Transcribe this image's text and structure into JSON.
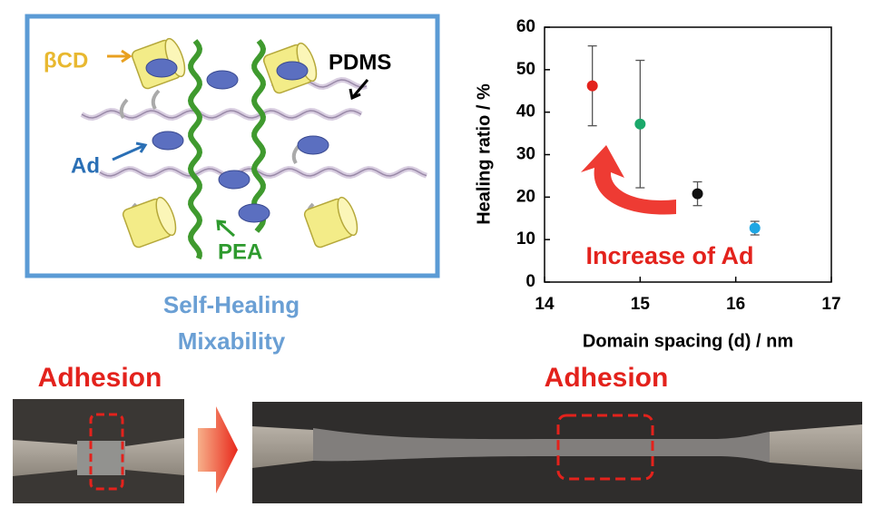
{
  "diagram": {
    "labels": [
      "βCD",
      "PDMS",
      "Ad",
      "PEA"
    ],
    "caption": [
      "Self-Healing",
      "Mixability"
    ]
  },
  "chart_data": {
    "type": "scatter",
    "xlabel": "Domain spacing (d) / nm",
    "ylabel": "Healing ratio / %",
    "annotation": "Increase of Ad",
    "x": [
      14.5,
      15.0,
      15.6,
      16.2
    ],
    "values": [
      46.2,
      37.2,
      20.8,
      12.7
    ],
    "errors": [
      9.4,
      15.0,
      2.8,
      1.6
    ],
    "colors": [
      "#e3221c",
      "#1aa86a",
      "#111111",
      "#1ea6e3"
    ],
    "xlim": [
      14,
      17
    ],
    "xticks": [
      14,
      15,
      16,
      17
    ],
    "ylim": [
      0,
      60
    ],
    "yticks": [
      0,
      10,
      20,
      30,
      40,
      50,
      60
    ]
  },
  "photos": {
    "labels": [
      "Adhesion",
      "Adhesion"
    ]
  }
}
